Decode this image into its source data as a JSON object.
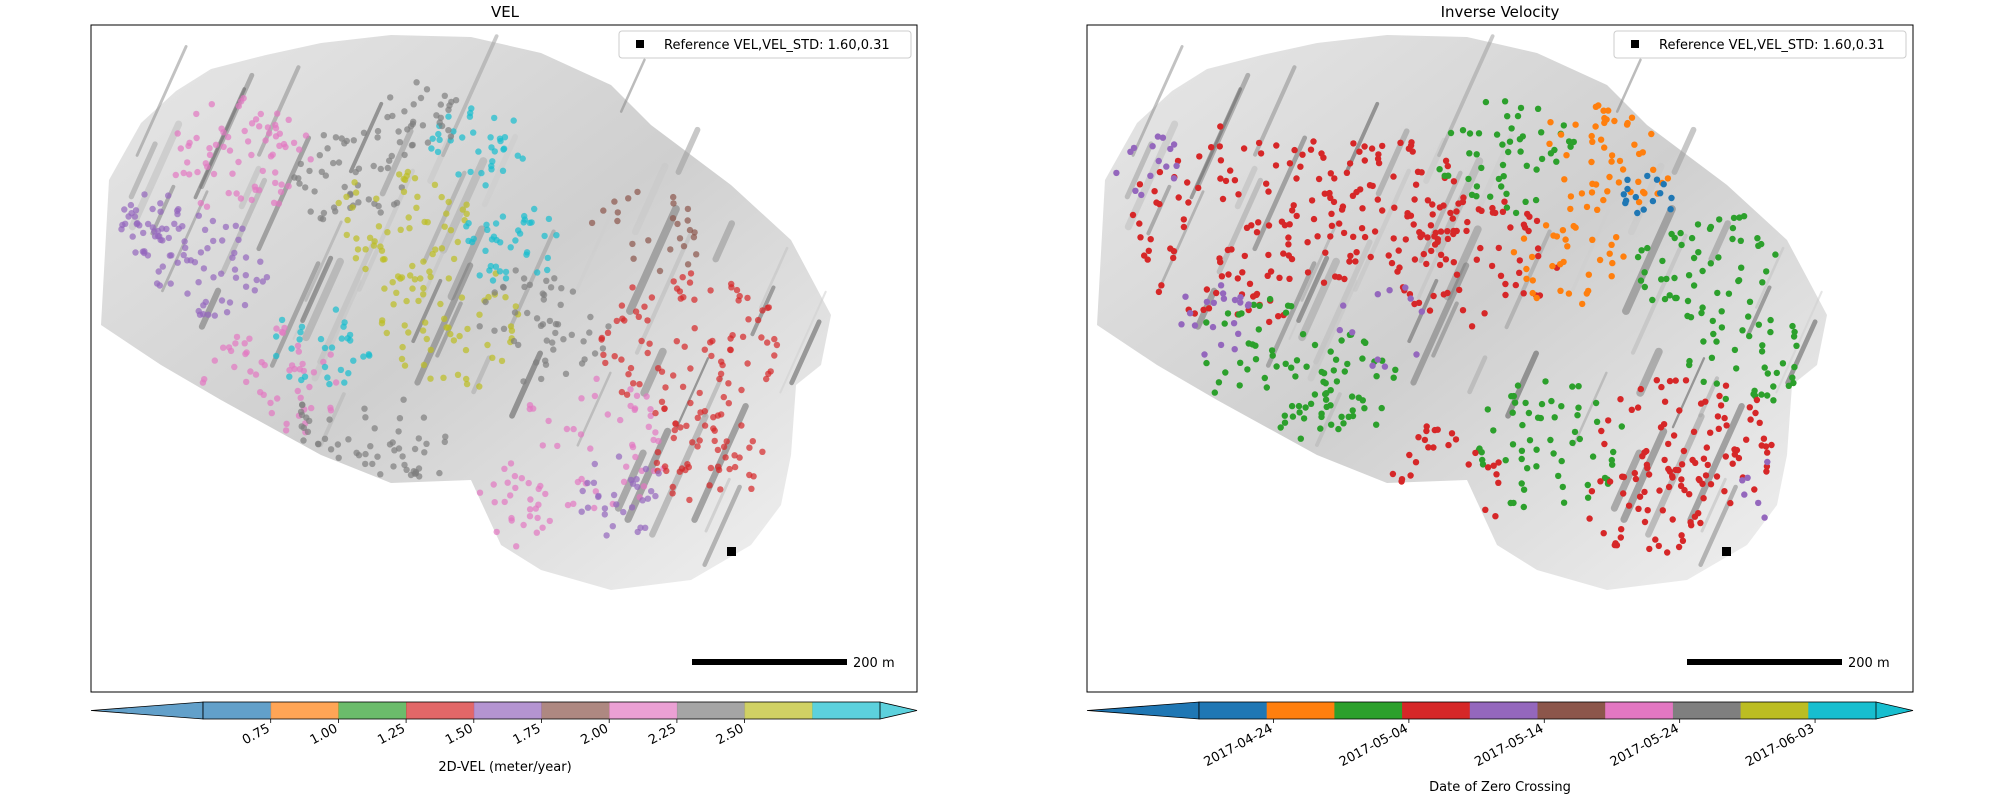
{
  "chart_data": [
    {
      "type": "scatter",
      "title": "VEL",
      "legend": {
        "label": "Reference VEL,VEL_STD: 1.60,0.31",
        "placement": "top-right"
      },
      "scalebar": {
        "label": "200 m"
      },
      "colorbar": {
        "label": "2D-VEL (meter/year)",
        "ticks": [
          "0.75",
          "1.00",
          "1.25",
          "1.50",
          "1.75",
          "2.00",
          "2.25",
          "2.50"
        ],
        "bins": 11,
        "colors": [
          "#1f77b4",
          "#ff7f0e",
          "#2ca02c",
          "#d62728",
          "#9467bd",
          "#8c564b",
          "#e377c2",
          "#7f7f7f",
          "#bcbd22",
          "#17becf"
        ],
        "extend": "both",
        "alpha": 0.7
      },
      "hillshade": true,
      "reference_point": "black-square",
      "points": []
    },
    {
      "type": "scatter",
      "title": "Inverse Velocity",
      "legend": {
        "label": "Reference VEL,VEL_STD: 1.60,0.31",
        "placement": "top-right"
      },
      "scalebar": {
        "label": "200 m"
      },
      "colorbar": {
        "label": "Date of Zero Crossing",
        "ticks": [
          "2017-04-24",
          "2017-05-04",
          "2017-05-14",
          "2017-05-24",
          "2017-06-03"
        ],
        "bins": 11,
        "colors": [
          "#1f77b4",
          "#ff7f0e",
          "#2ca02c",
          "#d62728",
          "#9467bd",
          "#8c564b",
          "#e377c2",
          "#7f7f7f",
          "#bcbd22",
          "#17becf"
        ],
        "extend": "both",
        "alpha": 1.0
      },
      "hillshade": true,
      "reference_point": "black-square",
      "points": []
    }
  ]
}
